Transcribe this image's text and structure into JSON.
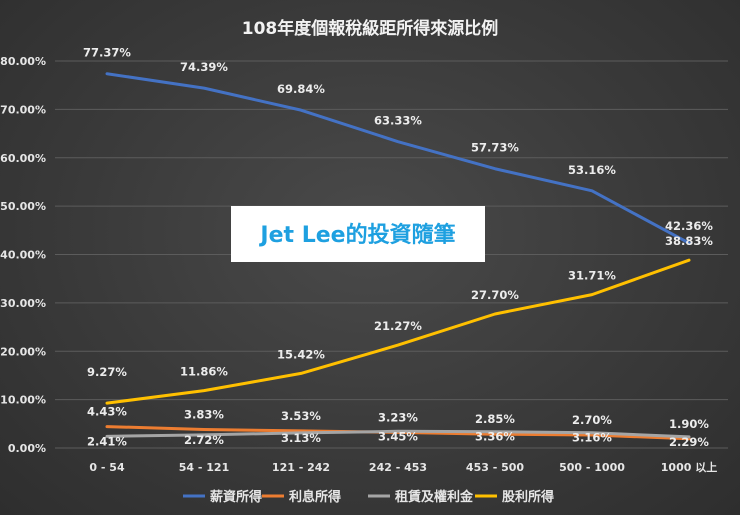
{
  "chart_data": {
    "type": "line",
    "title": "108年度個報稅級距所得來源比例",
    "watermark": "Jet Lee的投資隨筆",
    "categories": [
      "0 - 54",
      "54 - 121",
      "121 - 242",
      "242 - 453",
      "453 - 500",
      "500 - 1000",
      "1000 以上"
    ],
    "ylim": [
      0,
      80
    ],
    "yticks": [
      "0.00%",
      "10.00%",
      "20.00%",
      "30.00%",
      "40.00%",
      "50.00%",
      "60.00%",
      "70.00%",
      "80.00%"
    ],
    "grid": true,
    "legend_position": "bottom",
    "series": [
      {
        "name": "薪資所得",
        "color": "#4472c4",
        "values": [
          77.37,
          74.39,
          69.84,
          63.33,
          57.73,
          53.16,
          42.36
        ],
        "labels": [
          "77.37%",
          "74.39%",
          "69.84%",
          "63.33%",
          "57.73%",
          "53.16%",
          "42.36%"
        ]
      },
      {
        "name": "利息所得",
        "color": "#ed7d31",
        "values": [
          4.43,
          3.83,
          3.53,
          3.23,
          2.85,
          2.7,
          1.9
        ],
        "labels": [
          "4.43%",
          "3.83%",
          "3.53%",
          "3.23%",
          "2.85%",
          "2.70%",
          "1.90%"
        ]
      },
      {
        "name": "租賃及權利金",
        "color": "#a5a5a5",
        "values": [
          2.41,
          2.72,
          3.13,
          3.45,
          3.36,
          3.16,
          2.29
        ],
        "labels": [
          "2.41%",
          "2.72%",
          "3.13%",
          "3.45%",
          "3.36%",
          "3.16%",
          "2.29%"
        ]
      },
      {
        "name": "股利所得",
        "color": "#ffc000",
        "values": [
          9.27,
          11.86,
          15.42,
          21.27,
          27.7,
          31.71,
          38.83
        ],
        "labels": [
          "9.27%",
          "11.86%",
          "15.42%",
          "21.27%",
          "27.70%",
          "31.71%",
          "38.83%"
        ]
      }
    ]
  }
}
